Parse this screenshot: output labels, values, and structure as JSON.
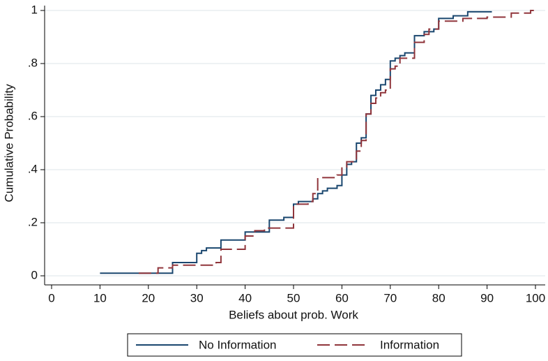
{
  "chart_data": {
    "type": "step",
    "x_label": "Beliefs about prob. Work",
    "y_label": "Cumulative Probability",
    "xlim": [
      0,
      100
    ],
    "xticks": [
      0,
      10,
      20,
      30,
      40,
      50,
      60,
      70,
      80,
      90,
      100
    ],
    "ylim": [
      0,
      1
    ],
    "yticks": [
      0,
      {
        "value": 0.2,
        "label": ".2"
      },
      {
        "value": 0.4,
        "label": ".4"
      },
      {
        "value": 0.6,
        "label": ".6"
      },
      {
        "value": 0.8,
        "label": ".8"
      },
      1
    ],
    "grid": true,
    "legend": "bottom",
    "series": [
      {
        "name": "No Information",
        "color": "#1a476f",
        "dash": false,
        "x": [
          10,
          25,
          30,
          31,
          32,
          35,
          40,
          45,
          48,
          50,
          51,
          54,
          55,
          56,
          57,
          59,
          60,
          61,
          62,
          63,
          64,
          65,
          66,
          67,
          68,
          69,
          70,
          71,
          72,
          73,
          75,
          77,
          79,
          80,
          83,
          86,
          91
        ],
        "values": [
          0.01,
          0.05,
          0.085,
          0.095,
          0.105,
          0.135,
          0.165,
          0.21,
          0.22,
          0.27,
          0.28,
          0.29,
          0.31,
          0.32,
          0.33,
          0.34,
          0.38,
          0.42,
          0.43,
          0.5,
          0.52,
          0.61,
          0.68,
          0.7,
          0.72,
          0.74,
          0.81,
          0.82,
          0.83,
          0.84,
          0.905,
          0.92,
          0.93,
          0.97,
          0.98,
          0.995,
          0.995
        ]
      },
      {
        "name": "Information",
        "color": "#90353b",
        "dash": true,
        "x": [
          18,
          22,
          25,
          34,
          35,
          40,
          42,
          44,
          50,
          53,
          54,
          55,
          59,
          60,
          61,
          63,
          64,
          65,
          66,
          67,
          68,
          69,
          70,
          71,
          72,
          75,
          77,
          78,
          80,
          85,
          90,
          95,
          99,
          100
        ],
        "values": [
          0.01,
          0.03,
          0.04,
          0.05,
          0.1,
          0.15,
          0.17,
          0.18,
          0.27,
          0.28,
          0.31,
          0.37,
          0.38,
          0.41,
          0.43,
          0.47,
          0.51,
          0.61,
          0.65,
          0.67,
          0.69,
          0.7,
          0.78,
          0.79,
          0.82,
          0.88,
          0.91,
          0.93,
          0.96,
          0.97,
          0.975,
          0.99,
          1,
          1
        ]
      }
    ]
  }
}
